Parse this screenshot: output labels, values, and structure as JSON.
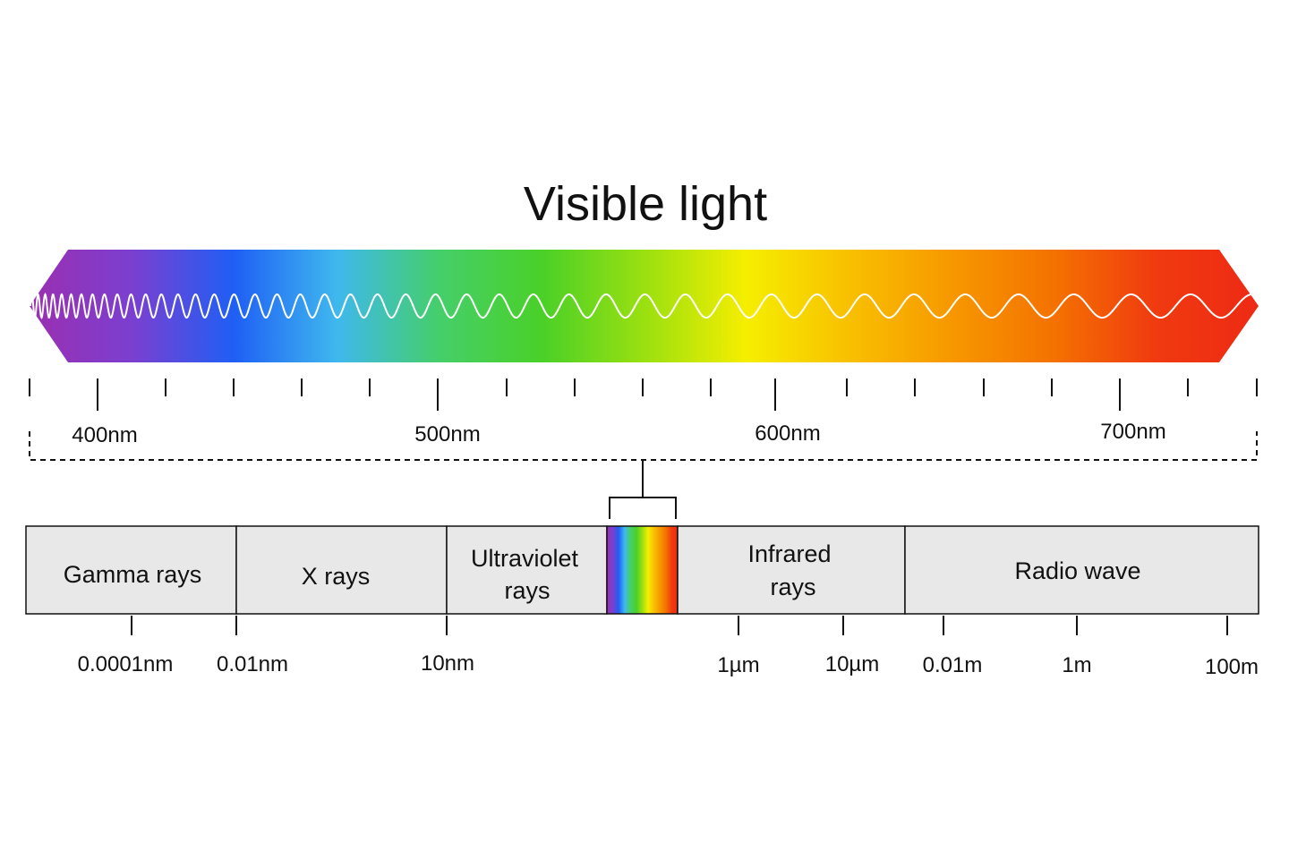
{
  "title": "Visible light",
  "colors": {
    "spectrum_stops": [
      "#9b2fb0",
      "#7b3fd0",
      "#1f5ff5",
      "#3fb8ee",
      "#45cf6a",
      "#4ad028",
      "#9ae010",
      "#f6ee00",
      "#f8c000",
      "#f79800",
      "#f47200",
      "#f03a10",
      "#ee2a14"
    ],
    "wave": "#ffffff",
    "band_fill": "#e8e8e8",
    "stroke": "#111111"
  },
  "visible_scale": {
    "labels": [
      "400nm",
      "500nm",
      "600nm",
      "700nm"
    ]
  },
  "bands": [
    {
      "name": "gamma",
      "lines": [
        "Gamma rays"
      ]
    },
    {
      "name": "x-rays",
      "lines": [
        "X rays"
      ]
    },
    {
      "name": "ultraviolet",
      "lines": [
        "Ultraviolet",
        "rays"
      ]
    },
    {
      "name": "infrared",
      "lines": [
        "Infrared",
        "rays"
      ]
    },
    {
      "name": "radio",
      "lines": [
        "Radio wave"
      ]
    }
  ],
  "scale_labels": [
    "0.0001nm",
    "0.01nm",
    "10nm",
    "1µm",
    "10µm",
    "0.01m",
    "1m",
    "100m"
  ]
}
